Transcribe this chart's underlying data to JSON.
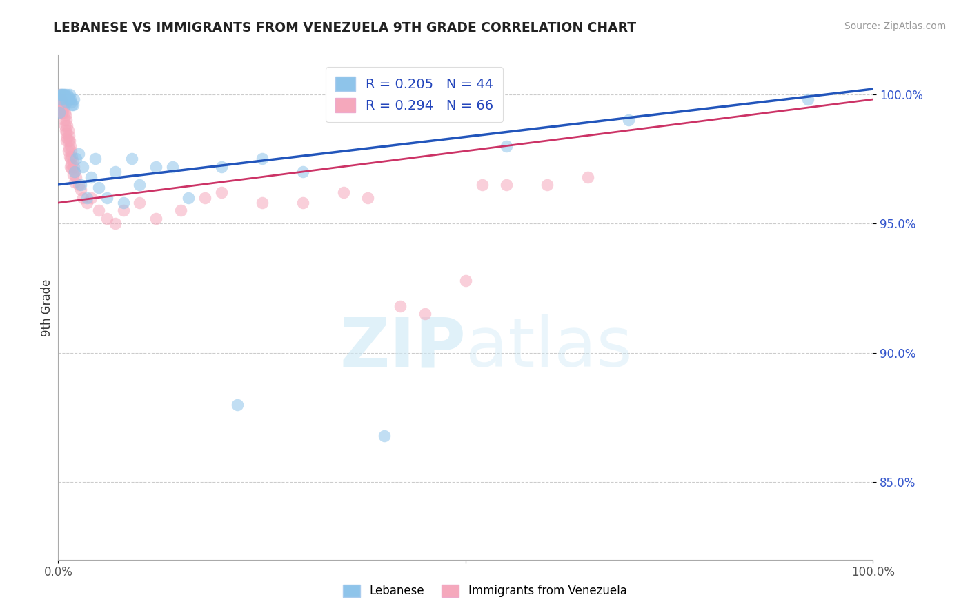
{
  "title": "LEBANESE VS IMMIGRANTS FROM VENEZUELA 9TH GRADE CORRELATION CHART",
  "source": "Source: ZipAtlas.com",
  "ylabel": "9th Grade",
  "blue_R": 0.205,
  "blue_N": 44,
  "pink_R": 0.294,
  "pink_N": 66,
  "blue_label": "Lebanese",
  "pink_label": "Immigrants from Venezuela",
  "blue_color": "#8EC4EA",
  "pink_color": "#F5A8BC",
  "blue_line_color": "#2255BB",
  "pink_line_color": "#CC3366",
  "legend_text_color": "#2244BB",
  "blue_x": [
    0.001,
    0.002,
    0.003,
    0.004,
    0.005,
    0.006,
    0.007,
    0.008,
    0.009,
    0.01,
    0.011,
    0.012,
    0.013,
    0.014,
    0.015,
    0.016,
    0.017,
    0.018,
    0.019,
    0.02,
    0.022,
    0.025,
    0.028,
    0.03,
    0.035,
    0.04,
    0.045,
    0.05,
    0.06,
    0.07,
    0.08,
    0.09,
    0.1,
    0.12,
    0.14,
    0.16,
    0.2,
    0.22,
    0.25,
    0.3,
    0.4,
    0.55,
    0.7,
    0.92
  ],
  "blue_y": [
    0.993,
    1.0,
    0.998,
    1.0,
    1.0,
    1.0,
    1.0,
    1.0,
    0.998,
    0.997,
    1.0,
    0.999,
    0.998,
    1.0,
    0.998,
    0.997,
    0.996,
    0.996,
    0.998,
    0.97,
    0.975,
    0.977,
    0.965,
    0.972,
    0.96,
    0.968,
    0.975,
    0.964,
    0.96,
    0.97,
    0.958,
    0.975,
    0.965,
    0.972,
    0.972,
    0.96,
    0.972,
    0.88,
    0.975,
    0.97,
    0.868,
    0.98,
    0.99,
    0.998
  ],
  "pink_x": [
    0.001,
    0.002,
    0.003,
    0.003,
    0.004,
    0.004,
    0.005,
    0.005,
    0.006,
    0.006,
    0.007,
    0.007,
    0.008,
    0.008,
    0.009,
    0.009,
    0.01,
    0.01,
    0.01,
    0.011,
    0.011,
    0.012,
    0.012,
    0.012,
    0.013,
    0.013,
    0.014,
    0.014,
    0.015,
    0.015,
    0.015,
    0.016,
    0.016,
    0.017,
    0.017,
    0.018,
    0.018,
    0.019,
    0.02,
    0.02,
    0.022,
    0.025,
    0.028,
    0.03,
    0.035,
    0.04,
    0.05,
    0.06,
    0.07,
    0.08,
    0.1,
    0.12,
    0.15,
    0.18,
    0.2,
    0.25,
    0.3,
    0.35,
    0.38,
    0.42,
    0.45,
    0.5,
    0.52,
    0.55,
    0.6,
    0.65
  ],
  "pink_y": [
    0.998,
    1.0,
    0.998,
    0.995,
    0.998,
    0.993,
    0.997,
    0.993,
    0.996,
    0.993,
    0.995,
    0.99,
    0.993,
    0.988,
    0.992,
    0.986,
    0.99,
    0.985,
    0.982,
    0.988,
    0.983,
    0.986,
    0.982,
    0.978,
    0.984,
    0.979,
    0.982,
    0.976,
    0.98,
    0.975,
    0.972,
    0.978,
    0.973,
    0.976,
    0.971,
    0.974,
    0.969,
    0.972,
    0.97,
    0.966,
    0.968,
    0.965,
    0.963,
    0.96,
    0.958,
    0.96,
    0.955,
    0.952,
    0.95,
    0.955,
    0.958,
    0.952,
    0.955,
    0.96,
    0.962,
    0.958,
    0.958,
    0.962,
    0.96,
    0.918,
    0.915,
    0.928,
    0.965,
    0.965,
    0.965,
    0.968
  ],
  "xlim": [
    0.0,
    1.0
  ],
  "ylim": [
    0.82,
    1.015
  ],
  "yticks": [
    0.85,
    0.9,
    0.95,
    1.0
  ],
  "ytick_labels": [
    "85.0%",
    "90.0%",
    "95.0%",
    "100.0%"
  ],
  "grid_color": "#cccccc",
  "watermark_zip": "ZIP",
  "watermark_atlas": "atlas",
  "background_color": "#ffffff"
}
